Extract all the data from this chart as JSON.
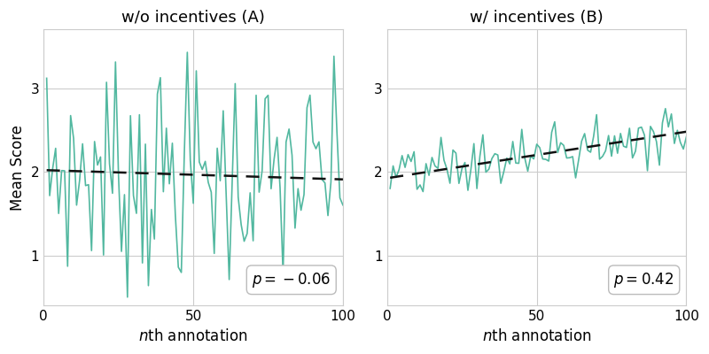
{
  "title_A": "w/o incentives (A)",
  "title_B": "w/ incentives (B)",
  "ylabel": "Mean Score",
  "ylim": [
    0.4,
    3.7
  ],
  "xlim": [
    0,
    100
  ],
  "yticks": [
    1,
    2,
    3
  ],
  "xticks": [
    0,
    50,
    100
  ],
  "line_color": "#52b8a0",
  "trend_color": "#111111",
  "trend_linestyle": "--",
  "trend_linewidth": 1.8,
  "line_linewidth": 1.2,
  "annotation_A": "$p = -0.06$",
  "annotation_B": "$p = 0.42$",
  "trend_A_start": 2.02,
  "trend_A_end": 1.91,
  "trend_B_start": 1.93,
  "trend_B_end": 2.48,
  "bg_color": "#ffffff",
  "grid_color": "#cccccc",
  "n_points": 100,
  "figure_width": 8.0,
  "figure_height": 4.0,
  "title_fontsize": 13,
  "label_fontsize": 12,
  "tick_fontsize": 11
}
